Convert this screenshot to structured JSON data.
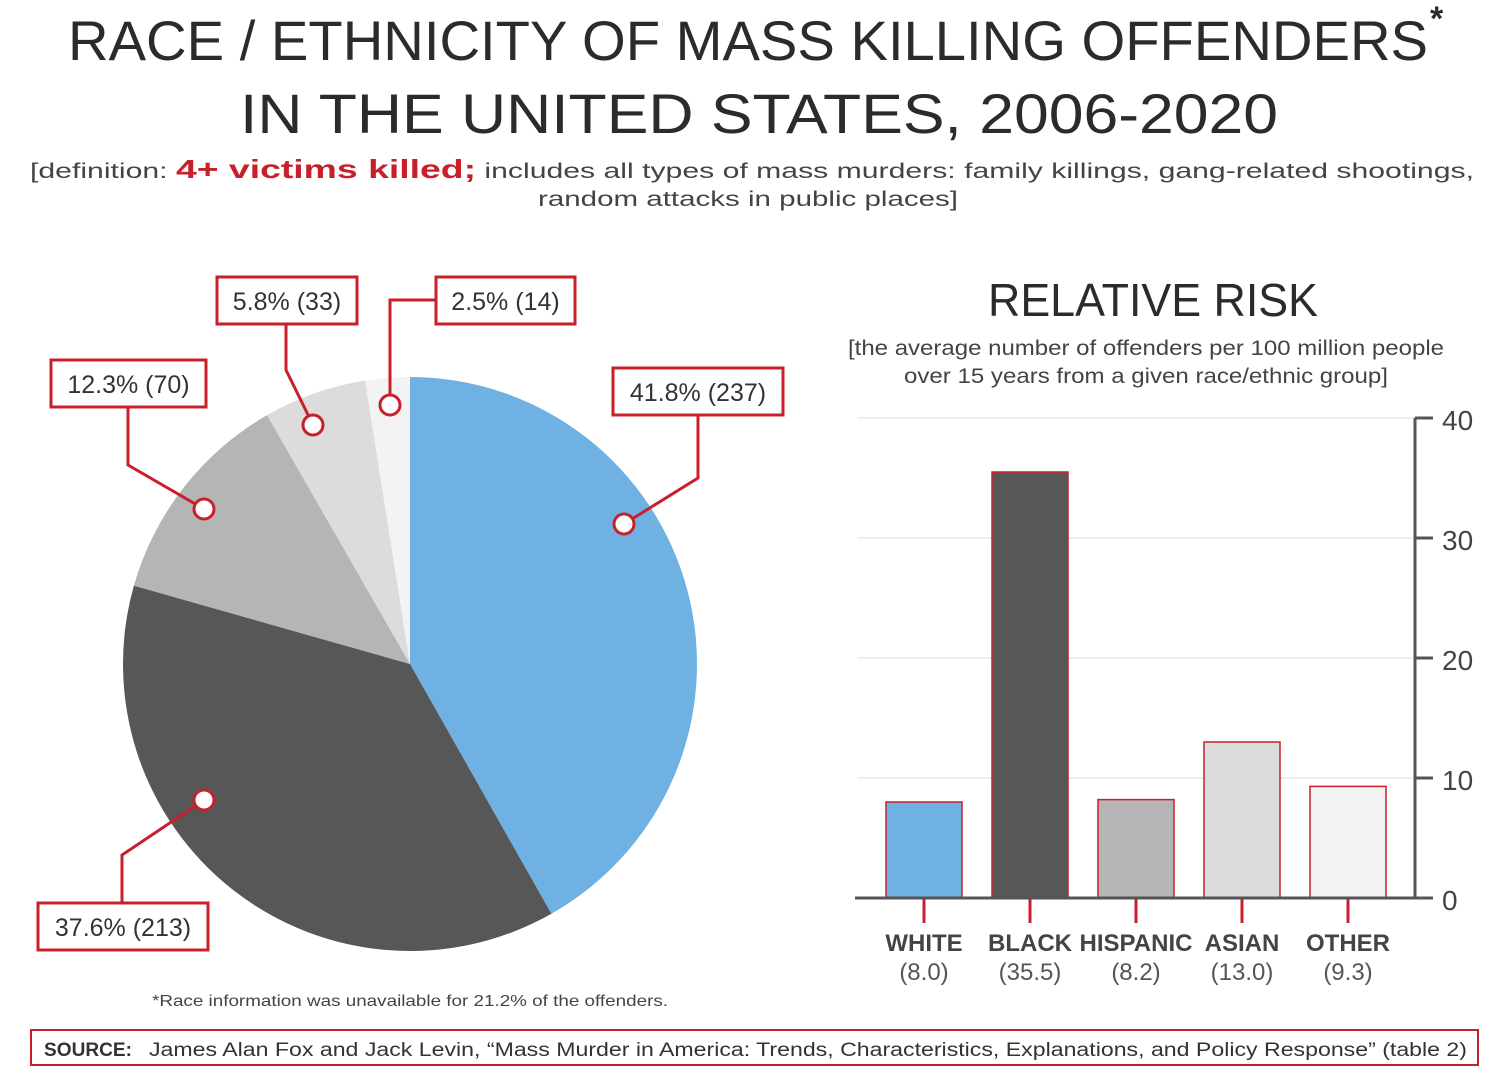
{
  "title_line1": "RACE / ETHNICITY OF MASS KILLING OFFENDERS",
  "title_asterisk": "*",
  "title_line2": "IN THE UNITED STATES, 2006-2020",
  "subtitle": {
    "prefix": "[definition: ",
    "highlight": "4+ victims killed;",
    "rest": " includes all types of mass murders: family killings, gang-related shootings,",
    "line2": "random attacks in public places]"
  },
  "footnote": "*Race information was unavailable for 21.2% of the offenders.",
  "source": {
    "label": "SOURCE:",
    "text": "James Alan Fox and Jack Levin, “Mass Murder in America: Trends, Characteristics, Explanations, and Policy Response” (table 2)"
  },
  "colors": {
    "accent": "#c8202a",
    "white": "#6fb1e3",
    "black": "#575757",
    "hispanic": "#b5b5b5",
    "asian": "#dcdcdc",
    "other": "#f3f3f3"
  },
  "chart_data": [
    {
      "type": "pie",
      "categories": [
        "White",
        "Black",
        "Hispanic",
        "Asian",
        "Other"
      ],
      "values": [
        41.8,
        37.6,
        12.3,
        5.8,
        2.5
      ],
      "counts": [
        237,
        213,
        70,
        33,
        14
      ],
      "labels": [
        "41.8% (237)",
        "37.6% (213)",
        "12.3% (70)",
        "5.8% (33)",
        "2.5% (14)"
      ],
      "start": "top",
      "direction": "clockwise"
    },
    {
      "type": "bar",
      "title": "RELATIVE RISK",
      "subtitle_line1": "[the average number of offenders per 100 million people",
      "subtitle_line2": "over 15 years from a given race/ethnic group]",
      "categories": [
        "WHITE",
        "BLACK",
        "HISPANIC",
        "ASIAN",
        "OTHER"
      ],
      "values": [
        8.0,
        35.5,
        8.2,
        13.0,
        9.3
      ],
      "value_labels": [
        "(8.0)",
        "(35.5)",
        "(8.2)",
        "(13.0)",
        "(9.3)"
      ],
      "ylim": [
        0,
        40
      ],
      "yticks": [
        "0",
        "10",
        "20",
        "30",
        "40"
      ],
      "grid": true,
      "yaxis_side": "right"
    }
  ]
}
